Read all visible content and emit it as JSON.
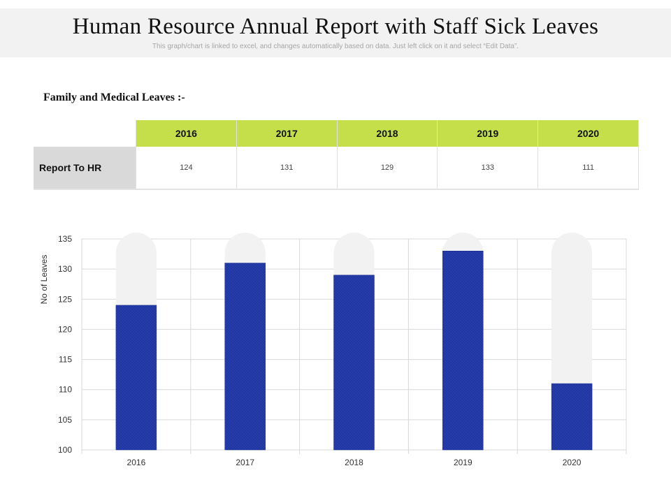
{
  "header": {
    "title": "Human Resource Annual Report with Staff Sick Leaves",
    "subtitle": "This graph/chart is linked to excel, and changes automatically based on data. Just left click on it and select “Edit Data”."
  },
  "section": {
    "title": "Family and Medical Leaves :-"
  },
  "table": {
    "headers": [
      "2016",
      "2017",
      "2018",
      "2019",
      "2020"
    ],
    "row_label": "Report To HR",
    "values": [
      "124",
      "131",
      "129",
      "133",
      "111"
    ]
  },
  "colors": {
    "accent": "#c5df4b",
    "bar": "#1f35a0",
    "track": "#f2f2f2",
    "row_label_bg": "#d9d9d9"
  },
  "chart_data": {
    "type": "bar",
    "categories": [
      "2016",
      "2017",
      "2018",
      "2019",
      "2020"
    ],
    "values": [
      124,
      131,
      129,
      133,
      111
    ],
    "ylabel": "No of Leaves",
    "xlabel": "",
    "ylim": [
      100,
      135
    ],
    "yticks": [
      "100",
      "105",
      "110",
      "115",
      "120",
      "125",
      "130",
      "135"
    ],
    "grid": true
  }
}
